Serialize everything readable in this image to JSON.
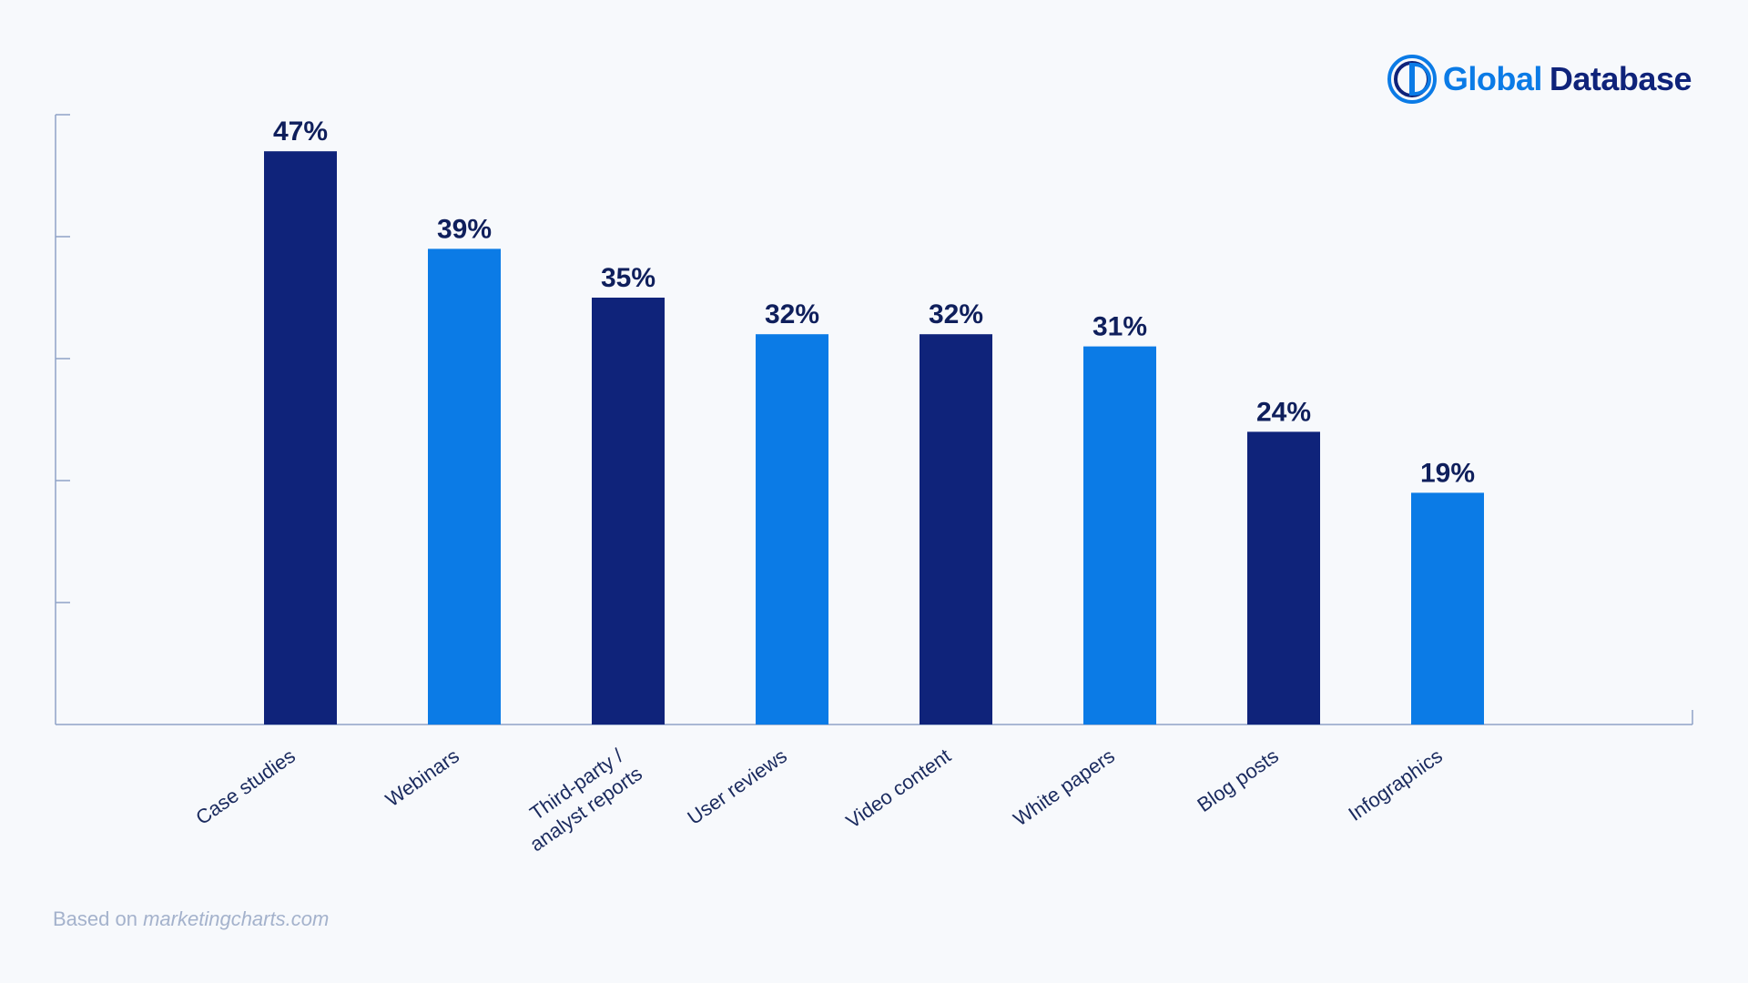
{
  "logo": {
    "word1": "Global",
    "word2": "Database",
    "icon": "global-database-logo-mark"
  },
  "source": {
    "prefix": "Based on",
    "site": "marketingcharts.com"
  },
  "colors": {
    "dark": "#0f237a",
    "light": "#0b7be6",
    "axis": "#8fa3c6",
    "label": "#1a2a5e",
    "value": "#0f1f5c"
  },
  "chart_data": {
    "type": "bar",
    "title": "",
    "xlabel": "",
    "ylabel": "",
    "ylim": [
      0,
      50
    ],
    "categories": [
      [
        "Case studies"
      ],
      [
        "Webinars"
      ],
      [
        "Third-party /",
        "analyst reports"
      ],
      [
        "User reviews"
      ],
      [
        "Video content"
      ],
      [
        "White papers"
      ],
      [
        "Blog posts"
      ],
      [
        "Infographics"
      ]
    ],
    "values": [
      47,
      39,
      35,
      32,
      32,
      31,
      24,
      19
    ],
    "value_labels": [
      "47%",
      "39%",
      "35%",
      "32%",
      "32%",
      "31%",
      "24%",
      "19%"
    ],
    "bar_colors": [
      "dark",
      "light",
      "dark",
      "light",
      "dark",
      "light",
      "dark",
      "light"
    ],
    "grid": false
  }
}
